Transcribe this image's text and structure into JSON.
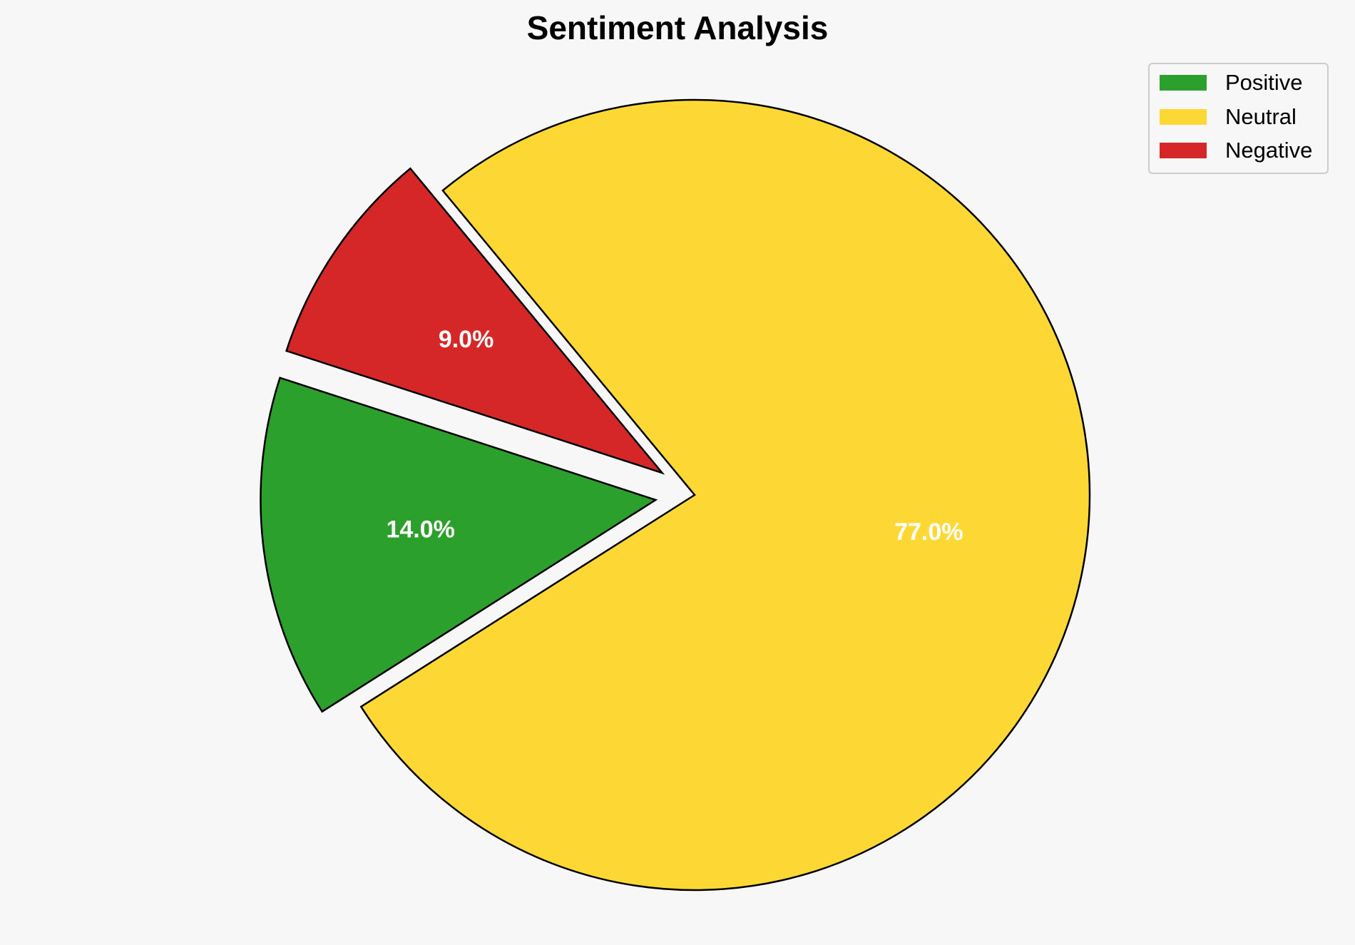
{
  "chart_data": {
    "type": "pie",
    "title": "Sentiment Analysis",
    "labels": [
      "Positive",
      "Neutral",
      "Negative"
    ],
    "values": [
      14.0,
      77.0,
      9.0
    ],
    "value_labels": [
      "14.0%",
      "77.0%",
      "9.0%"
    ],
    "colors": [
      "#2ca02c",
      "#fdd835",
      "#d62728"
    ],
    "exploded": [
      true,
      false,
      true
    ],
    "legend": {
      "placement": "top-right",
      "entries": [
        "Positive",
        "Neutral",
        "Negative"
      ]
    }
  }
}
